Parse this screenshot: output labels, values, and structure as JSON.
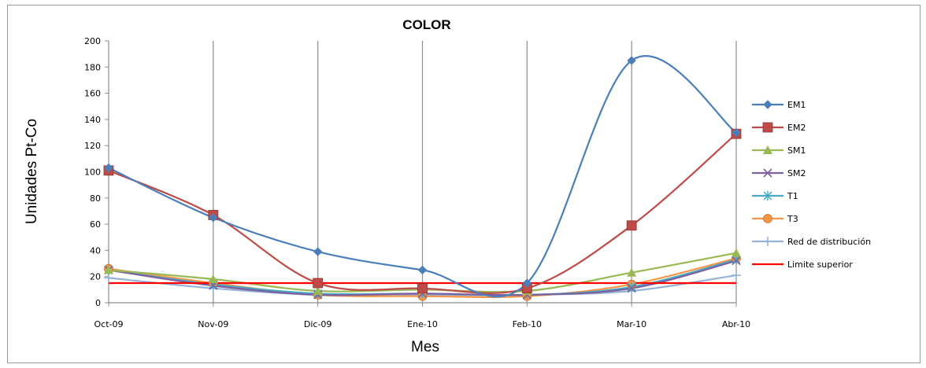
{
  "chart_data": {
    "type": "line",
    "title": "COLOR",
    "xlabel": "Mes",
    "ylabel": "Unidades Pt-Co",
    "categories": [
      "Oct-09",
      "Nov-09",
      "Dic-09",
      "Ene-10",
      "Feb-10",
      "Mar-10",
      "Abr-10"
    ],
    "ylim": [
      0,
      200
    ],
    "yticks": [
      0,
      20,
      40,
      60,
      80,
      100,
      120,
      140,
      160,
      180,
      200
    ],
    "grid": "vertical",
    "legend_position": "right",
    "series": [
      {
        "name": "EM1",
        "color": "#4a7ebb",
        "marker": "diamond",
        "values": [
          103,
          65,
          39,
          25,
          15,
          185,
          130
        ]
      },
      {
        "name": "EM2",
        "color": "#be4b48",
        "marker": "square",
        "values": [
          101,
          67,
          15,
          11,
          11,
          59,
          129
        ]
      },
      {
        "name": "SM1",
        "color": "#98b954",
        "marker": "triangle",
        "values": [
          25,
          18,
          9,
          10,
          9,
          23,
          38
        ]
      },
      {
        "name": "SM2",
        "color": "#7d60a0",
        "marker": "x",
        "values": [
          25,
          13,
          6,
          7,
          6,
          11,
          32
        ]
      },
      {
        "name": "T1",
        "color": "#46aac5",
        "marker": "star",
        "values": [
          25,
          14,
          7,
          7,
          6,
          12,
          33
        ]
      },
      {
        "name": "T3",
        "color": "#f79646",
        "marker": "circle",
        "values": [
          26,
          15,
          6,
          5,
          5,
          14,
          34
        ]
      },
      {
        "name": "Red de distribución",
        "color": "#95b3d7",
        "marker": "plus",
        "values": [
          19,
          11,
          6,
          6,
          6,
          9,
          21
        ]
      },
      {
        "name": "Limite superior",
        "color": "#ff0000",
        "marker": "none",
        "values": [
          15,
          15,
          15,
          15,
          15,
          15,
          15
        ]
      }
    ]
  }
}
